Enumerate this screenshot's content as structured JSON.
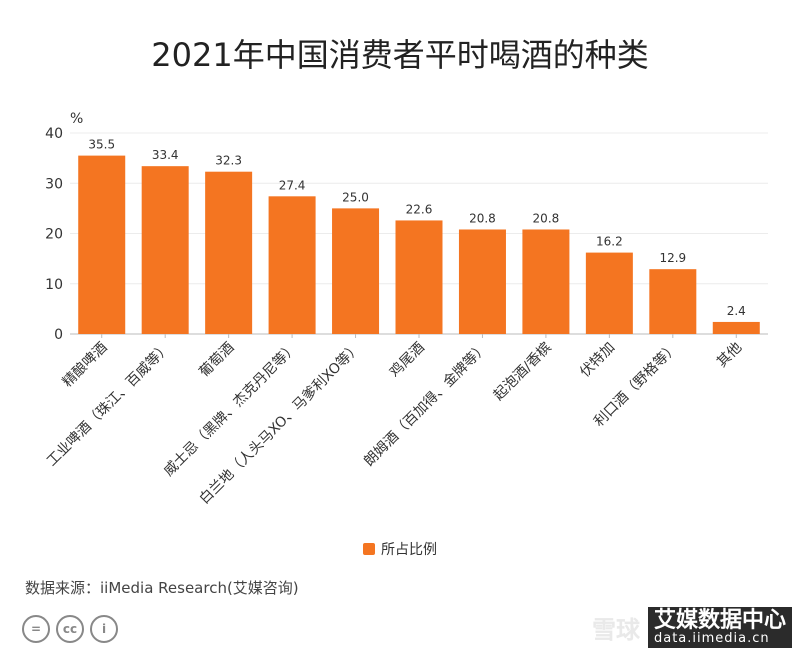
{
  "title": "2021年中国消费者平时喝酒的种类",
  "chart_data": {
    "type": "bar",
    "title": "2021年中国消费者平时喝酒的种类",
    "ylabel": "%",
    "xlabel": "",
    "ylim": [
      0,
      40
    ],
    "yticks": [
      0,
      10,
      20,
      30,
      40
    ],
    "grid": true,
    "legend_position": "bottom",
    "categories": [
      "精酿啤酒",
      "工业啤酒（珠江、百威等）",
      "葡萄酒",
      "威士忌（黑牌、杰克丹尼等）",
      "白兰地（人头马XO、马爹利XO等）",
      "鸡尾酒",
      "朗姆酒（百加得、金牌等）",
      "起泡酒/香槟",
      "伏特加",
      "利口酒（野格等）",
      "其他"
    ],
    "series": [
      {
        "name": "所占比例",
        "color": "#F47521",
        "values": [
          35.5,
          33.4,
          32.3,
          27.4,
          25.0,
          22.6,
          20.8,
          20.8,
          16.2,
          12.9,
          2.4
        ]
      }
    ],
    "value_labels": [
      "35.5",
      "33.4",
      "32.3",
      "27.4",
      "25.0",
      "22.6",
      "20.8",
      "20.8",
      "16.2",
      "12.9",
      "2.4"
    ]
  },
  "source": "数据来源：iiMedia Research(艾媒咨询)",
  "license_icons": [
    "=",
    "cc",
    "i"
  ],
  "watermark": {
    "snowball": "雪球",
    "logo_line1": "艾媒数据中心",
    "logo_line2": "data.iimedia.cn"
  }
}
